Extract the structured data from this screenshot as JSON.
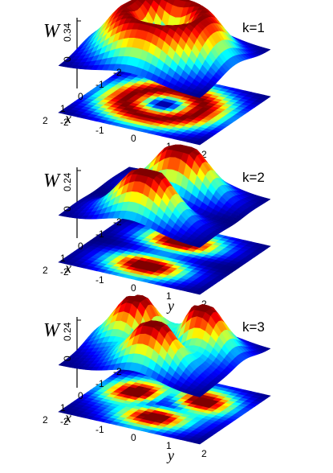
{
  "chart_data": [
    {
      "type": "surface",
      "label": "k=1",
      "zlabel": "W",
      "z_ticks": [
        "0",
        "0.34"
      ],
      "zlim": [
        0,
        0.34
      ],
      "xlabel": "x",
      "ylabel": "y",
      "x_ticks": [
        "-2",
        "-1",
        "0",
        "1",
        "2"
      ],
      "y_ticks": [
        "-2",
        "-1",
        "0",
        "1",
        "2"
      ],
      "xlim": [
        -2,
        2
      ],
      "ylim": [
        -2,
        2
      ],
      "shape": "ring",
      "peak_value": 0.34,
      "peak_radius": 1.0,
      "colormap": "jet",
      "projection": "color map on base plane"
    },
    {
      "type": "surface",
      "label": "k=2",
      "zlabel": "W",
      "z_ticks": [
        "0",
        "0.24"
      ],
      "zlim": [
        0,
        0.24
      ],
      "xlabel": "x",
      "ylabel": "y",
      "x_ticks": [
        "-2",
        "-1",
        "0",
        "1",
        "2"
      ],
      "y_ticks": [
        "-2",
        "-1",
        "0",
        "1",
        "2"
      ],
      "xlim": [
        -2,
        2
      ],
      "ylim": [
        -2,
        2
      ],
      "shape": "two lobes",
      "peak_value": 0.24,
      "colormap": "jet",
      "projection": "color map on base plane"
    },
    {
      "type": "surface",
      "label": "k=3",
      "zlabel": "W",
      "z_ticks": [
        "0",
        "0.24"
      ],
      "zlim": [
        0,
        0.24
      ],
      "xlabel": "x",
      "ylabel": "y",
      "x_ticks": [
        "-2",
        "-1",
        "0",
        "1",
        "2"
      ],
      "y_ticks": [
        "-2",
        "-1",
        "0",
        "1",
        "2"
      ],
      "xlim": [
        -2,
        2
      ],
      "ylim": [
        -2,
        2
      ],
      "shape": "three lobes",
      "peak_value": 0.24,
      "colormap": "jet",
      "projection": "color map on base plane"
    }
  ]
}
